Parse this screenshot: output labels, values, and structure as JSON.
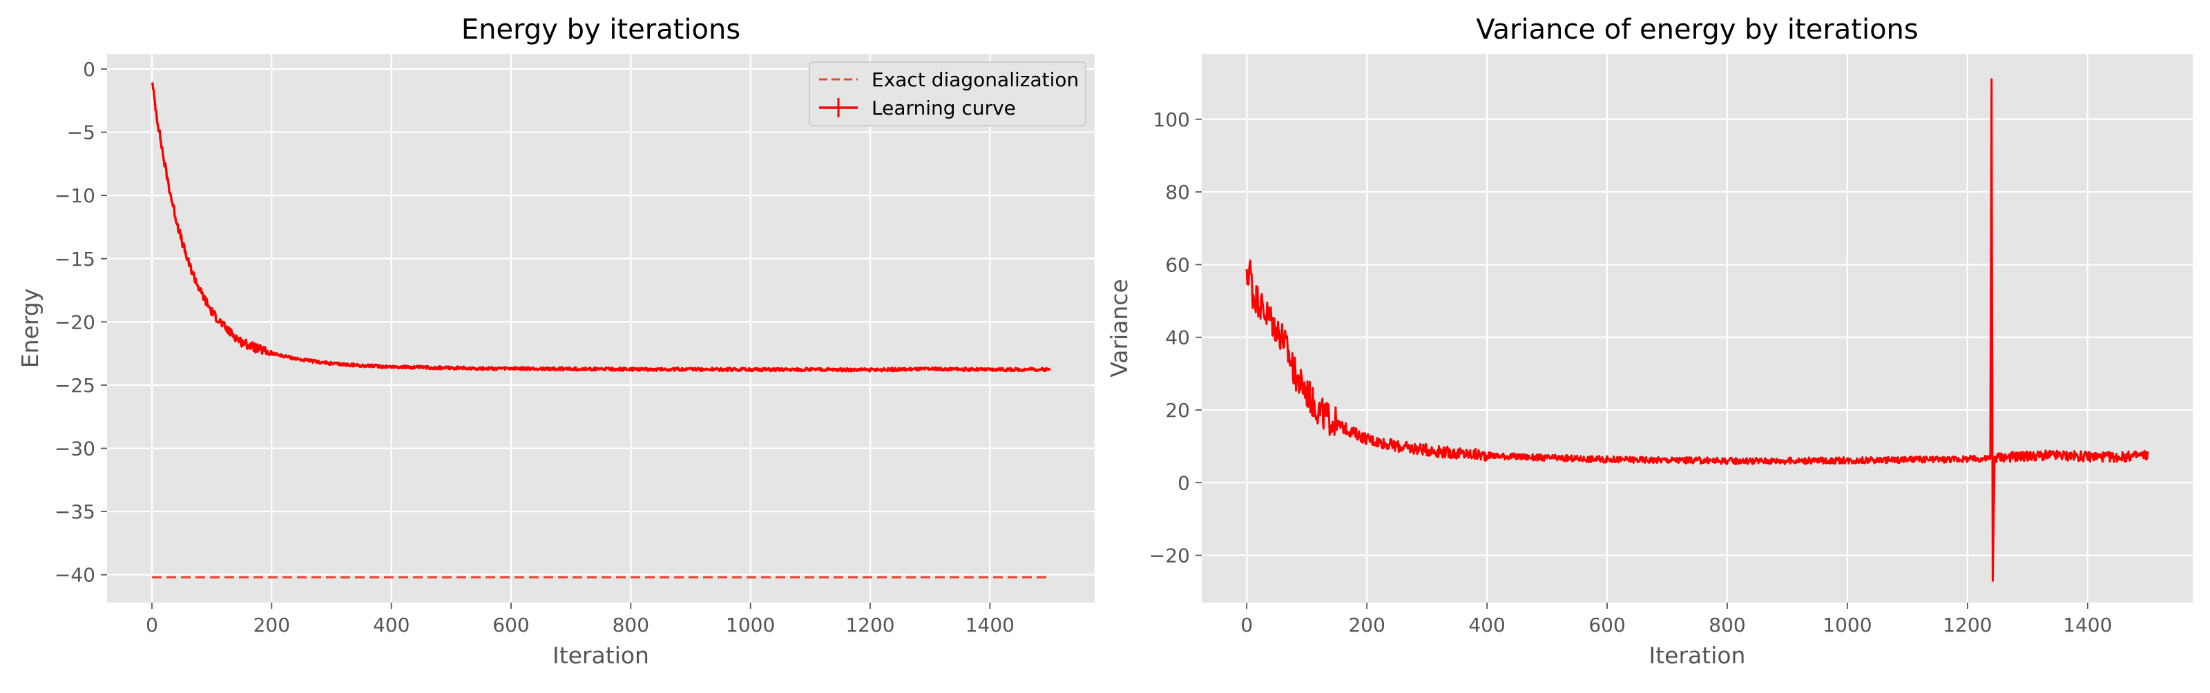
{
  "chart_data": [
    {
      "type": "line",
      "title": "Energy by iterations",
      "xlabel": "Iteration",
      "ylabel": "Energy",
      "xlim": [
        -75,
        1575
      ],
      "ylim": [
        -42.2,
        1.2
      ],
      "xticks": [
        0,
        200,
        400,
        600,
        800,
        1000,
        1200,
        1400
      ],
      "yticks": [
        0,
        -5,
        -10,
        -15,
        -20,
        -25,
        -30,
        -35,
        -40
      ],
      "grid": true,
      "legend": "top-right",
      "series": [
        {
          "name": "Exact diagonalization",
          "style": "dashed",
          "color": "#e24a33",
          "x": [
            0,
            1500
          ],
          "y": [
            -40.2,
            -40.2
          ]
        },
        {
          "name": "Learning curve",
          "style": "solid-errorbar",
          "color": "#ff0000",
          "x": [
            0,
            10,
            20,
            30,
            40,
            50,
            60,
            80,
            100,
            125,
            150,
            175,
            200,
            250,
            300,
            350,
            400,
            500,
            600,
            700,
            800,
            900,
            1000,
            1100,
            1200,
            1300,
            1400,
            1500
          ],
          "y": [
            -1.0,
            -4.3,
            -7.2,
            -9.7,
            -11.8,
            -13.6,
            -15.2,
            -17.5,
            -19.2,
            -20.6,
            -21.6,
            -22.1,
            -22.5,
            -23.0,
            -23.3,
            -23.45,
            -23.55,
            -23.65,
            -23.7,
            -23.72,
            -23.75,
            -23.75,
            -23.77,
            -23.77,
            -23.8,
            -23.72,
            -23.78,
            -23.75
          ]
        }
      ]
    },
    {
      "type": "line",
      "title": "Variance of energy by iterations",
      "xlabel": "Iteration",
      "ylabel": "Variance",
      "xlim": [
        -75,
        1575
      ],
      "ylim": [
        -33,
        118
      ],
      "xticks": [
        0,
        200,
        400,
        600,
        800,
        1000,
        1200,
        1400
      ],
      "yticks": [
        -20,
        0,
        20,
        40,
        60,
        80,
        100
      ],
      "grid": true,
      "series": [
        {
          "name": "",
          "color": "#ff0000",
          "x": [
            0,
            5,
            10,
            20,
            30,
            40,
            50,
            60,
            70,
            80,
            90,
            100,
            110,
            125,
            150,
            175,
            200,
            250,
            300,
            350,
            400,
            500,
            600,
            700,
            800,
            900,
            1000,
            1100,
            1200,
            1238,
            1240,
            1242,
            1245,
            1300,
            1350,
            1400,
            1450,
            1500
          ],
          "y": [
            55,
            60,
            52,
            50,
            47,
            45,
            42,
            40,
            35,
            30,
            27,
            25,
            22,
            19,
            16,
            14,
            12,
            10,
            9,
            8,
            7.5,
            6.8,
            6.4,
            6.2,
            6.0,
            6.0,
            6.1,
            6.3,
            6.5,
            6.6,
            111,
            -27,
            7,
            7.3,
            7.5,
            7.2,
            7.0,
            7.6
          ]
        }
      ]
    }
  ]
}
